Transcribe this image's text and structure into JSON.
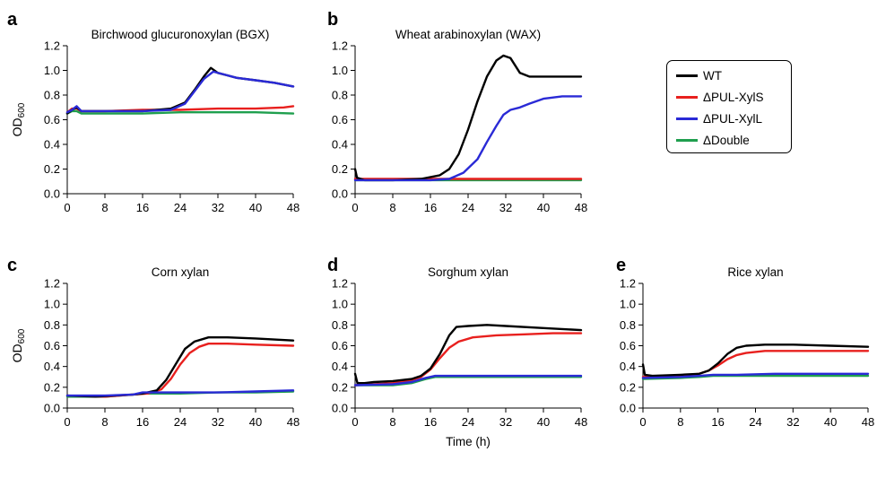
{
  "colors": {
    "WT": "#000000",
    "ΔPUL-XylS": "#e8201e",
    "ΔPUL-XylL": "#2a2ad6",
    "ΔDouble": "#1f9f4e"
  },
  "legend": [
    "WT",
    "ΔPUL-XylS",
    "ΔPUL-XylL",
    "ΔDouble"
  ],
  "chart_data": [
    {
      "type": "line",
      "panel": "a",
      "title": "Birchwood glucuronoxylan (BGX)",
      "ylabel": "OD600",
      "xlabel": "",
      "xlim": [
        0,
        48
      ],
      "ylim": [
        0,
        1.2
      ],
      "xticks": [
        "0",
        "8",
        "16",
        "24",
        "32",
        "40",
        "48"
      ],
      "yticks": [
        "0.0",
        "0.2",
        "0.4",
        "0.6",
        "0.8",
        "1.0",
        "1.2"
      ],
      "series": [
        {
          "name": "WT",
          "points": [
            [
              0,
              0.65
            ],
            [
              1,
              0.68
            ],
            [
              2,
              0.7
            ],
            [
              3,
              0.67
            ],
            [
              8,
              0.67
            ],
            [
              16,
              0.67
            ],
            [
              22,
              0.69
            ],
            [
              25,
              0.74
            ],
            [
              27,
              0.84
            ],
            [
              29,
              0.95
            ],
            [
              30.5,
              1.02
            ],
            [
              32,
              0.98
            ],
            [
              36,
              0.94
            ],
            [
              40,
              0.92
            ],
            [
              44,
              0.9
            ],
            [
              48,
              0.87
            ]
          ]
        },
        {
          "name": "ΔPUL-XylS",
          "points": [
            [
              0,
              0.66
            ],
            [
              1,
              0.69
            ],
            [
              2,
              0.69
            ],
            [
              3,
              0.67
            ],
            [
              8,
              0.67
            ],
            [
              16,
              0.68
            ],
            [
              24,
              0.68
            ],
            [
              32,
              0.69
            ],
            [
              40,
              0.69
            ],
            [
              46,
              0.7
            ],
            [
              48,
              0.71
            ]
          ]
        },
        {
          "name": "ΔPUL-XylL",
          "points": [
            [
              0,
              0.66
            ],
            [
              1,
              0.68
            ],
            [
              2,
              0.71
            ],
            [
              3,
              0.67
            ],
            [
              8,
              0.67
            ],
            [
              16,
              0.67
            ],
            [
              22,
              0.68
            ],
            [
              25,
              0.73
            ],
            [
              27,
              0.83
            ],
            [
              29,
              0.93
            ],
            [
              31,
              0.99
            ],
            [
              33,
              0.97
            ],
            [
              36,
              0.94
            ],
            [
              40,
              0.92
            ],
            [
              44,
              0.9
            ],
            [
              48,
              0.87
            ]
          ]
        },
        {
          "name": "ΔDouble",
          "points": [
            [
              0,
              0.65
            ],
            [
              1,
              0.67
            ],
            [
              2,
              0.67
            ],
            [
              3,
              0.65
            ],
            [
              8,
              0.65
            ],
            [
              16,
              0.65
            ],
            [
              24,
              0.66
            ],
            [
              32,
              0.66
            ],
            [
              40,
              0.66
            ],
            [
              48,
              0.65
            ]
          ]
        }
      ]
    },
    {
      "type": "line",
      "panel": "b",
      "title": "Wheat arabinoxylan (WAX)",
      "ylabel": "",
      "xlabel": "",
      "xlim": [
        0,
        48
      ],
      "ylim": [
        0,
        1.2
      ],
      "xticks": [
        "0",
        "8",
        "16",
        "24",
        "32",
        "40",
        "48"
      ],
      "yticks": [
        "0.0",
        "0.2",
        "0.4",
        "0.6",
        "0.8",
        "1.0",
        "1.2"
      ],
      "series": [
        {
          "name": "WT",
          "points": [
            [
              0,
              0.2
            ],
            [
              0.4,
              0.13
            ],
            [
              2,
              0.11
            ],
            [
              8,
              0.11
            ],
            [
              14,
              0.12
            ],
            [
              18,
              0.15
            ],
            [
              20,
              0.2
            ],
            [
              22,
              0.32
            ],
            [
              24,
              0.52
            ],
            [
              26,
              0.75
            ],
            [
              28,
              0.95
            ],
            [
              30,
              1.08
            ],
            [
              31.5,
              1.12
            ],
            [
              33,
              1.1
            ],
            [
              35,
              0.98
            ],
            [
              37,
              0.95
            ],
            [
              40,
              0.95
            ],
            [
              44,
              0.95
            ],
            [
              48,
              0.95
            ]
          ]
        },
        {
          "name": "ΔPUL-XylS",
          "points": [
            [
              0,
              0.12
            ],
            [
              8,
              0.12
            ],
            [
              16,
              0.12
            ],
            [
              24,
              0.12
            ],
            [
              32,
              0.12
            ],
            [
              40,
              0.12
            ],
            [
              48,
              0.12
            ]
          ]
        },
        {
          "name": "ΔPUL-XylL",
          "points": [
            [
              0,
              0.11
            ],
            [
              8,
              0.11
            ],
            [
              16,
              0.11
            ],
            [
              20,
              0.12
            ],
            [
              23,
              0.17
            ],
            [
              26,
              0.28
            ],
            [
              28,
              0.42
            ],
            [
              30,
              0.55
            ],
            [
              31.5,
              0.64
            ],
            [
              33,
              0.68
            ],
            [
              35,
              0.7
            ],
            [
              37,
              0.73
            ],
            [
              40,
              0.77
            ],
            [
              44,
              0.79
            ],
            [
              48,
              0.79
            ]
          ]
        },
        {
          "name": "ΔDouble",
          "points": [
            [
              0,
              0.11
            ],
            [
              8,
              0.11
            ],
            [
              16,
              0.11
            ],
            [
              24,
              0.11
            ],
            [
              32,
              0.11
            ],
            [
              40,
              0.11
            ],
            [
              48,
              0.11
            ]
          ]
        }
      ]
    },
    {
      "type": "line",
      "panel": "c",
      "title": "Corn xylan",
      "ylabel": "OD600",
      "xlabel": "",
      "xlim": [
        0,
        48
      ],
      "ylim": [
        0,
        1.2
      ],
      "xticks": [
        "0",
        "8",
        "16",
        "24",
        "32",
        "40",
        "48"
      ],
      "yticks": [
        "0.0",
        "0.2",
        "0.4",
        "0.6",
        "0.8",
        "1.0",
        "1.2"
      ],
      "series": [
        {
          "name": "WT",
          "points": [
            [
              0,
              0.12
            ],
            [
              6,
              0.11
            ],
            [
              10,
              0.12
            ],
            [
              14,
              0.13
            ],
            [
              16,
              0.14
            ],
            [
              19,
              0.17
            ],
            [
              21,
              0.27
            ],
            [
              23,
              0.42
            ],
            [
              25,
              0.57
            ],
            [
              27,
              0.64
            ],
            [
              30,
              0.68
            ],
            [
              34,
              0.68
            ],
            [
              40,
              0.67
            ],
            [
              48,
              0.65
            ]
          ]
        },
        {
          "name": "ΔPUL-XylS",
          "points": [
            [
              0,
              0.12
            ],
            [
              8,
              0.11
            ],
            [
              14,
              0.13
            ],
            [
              17,
              0.14
            ],
            [
              20,
              0.18
            ],
            [
              22,
              0.28
            ],
            [
              24,
              0.42
            ],
            [
              26,
              0.53
            ],
            [
              28,
              0.59
            ],
            [
              30,
              0.62
            ],
            [
              34,
              0.62
            ],
            [
              40,
              0.61
            ],
            [
              48,
              0.6
            ]
          ]
        },
        {
          "name": "ΔPUL-XylL",
          "points": [
            [
              0,
              0.12
            ],
            [
              8,
              0.12
            ],
            [
              14,
              0.13
            ],
            [
              16,
              0.15
            ],
            [
              24,
              0.15
            ],
            [
              32,
              0.15
            ],
            [
              40,
              0.16
            ],
            [
              48,
              0.17
            ]
          ]
        },
        {
          "name": "ΔDouble",
          "points": [
            [
              0,
              0.11
            ],
            [
              8,
              0.11
            ],
            [
              14,
              0.13
            ],
            [
              16,
              0.14
            ],
            [
              24,
              0.14
            ],
            [
              32,
              0.15
            ],
            [
              40,
              0.15
            ],
            [
              48,
              0.16
            ]
          ]
        }
      ]
    },
    {
      "type": "line",
      "panel": "d",
      "title": "Sorghum xylan",
      "ylabel": "",
      "xlabel": "Time (h)",
      "xlim": [
        0,
        48
      ],
      "ylim": [
        0,
        1.2
      ],
      "xticks": [
        "0",
        "8",
        "16",
        "24",
        "32",
        "40",
        "48"
      ],
      "yticks": [
        "0.0",
        "0.2",
        "0.4",
        "0.6",
        "0.8",
        "1.0",
        "1.2"
      ],
      "series": [
        {
          "name": "WT",
          "points": [
            [
              0,
              0.33
            ],
            [
              0.5,
              0.24
            ],
            [
              2,
              0.24
            ],
            [
              4,
              0.25
            ],
            [
              8,
              0.26
            ],
            [
              12,
              0.28
            ],
            [
              14,
              0.31
            ],
            [
              16,
              0.38
            ],
            [
              18,
              0.52
            ],
            [
              20,
              0.7
            ],
            [
              21.5,
              0.78
            ],
            [
              24,
              0.79
            ],
            [
              28,
              0.8
            ],
            [
              32,
              0.79
            ],
            [
              40,
              0.77
            ],
            [
              48,
              0.75
            ]
          ]
        },
        {
          "name": "ΔPUL-XylS",
          "points": [
            [
              0,
              0.22
            ],
            [
              4,
              0.23
            ],
            [
              8,
              0.24
            ],
            [
              12,
              0.27
            ],
            [
              14,
              0.3
            ],
            [
              16,
              0.37
            ],
            [
              18,
              0.48
            ],
            [
              20,
              0.58
            ],
            [
              22,
              0.64
            ],
            [
              25,
              0.68
            ],
            [
              30,
              0.7
            ],
            [
              36,
              0.71
            ],
            [
              42,
              0.72
            ],
            [
              48,
              0.72
            ]
          ]
        },
        {
          "name": "ΔPUL-XylL",
          "points": [
            [
              0,
              0.22
            ],
            [
              8,
              0.23
            ],
            [
              12,
              0.25
            ],
            [
              15,
              0.29
            ],
            [
              17,
              0.31
            ],
            [
              24,
              0.31
            ],
            [
              32,
              0.31
            ],
            [
              40,
              0.31
            ],
            [
              48,
              0.31
            ]
          ]
        },
        {
          "name": "ΔDouble",
          "points": [
            [
              0,
              0.22
            ],
            [
              8,
              0.22
            ],
            [
              12,
              0.24
            ],
            [
              15,
              0.28
            ],
            [
              17,
              0.3
            ],
            [
              24,
              0.3
            ],
            [
              32,
              0.3
            ],
            [
              40,
              0.3
            ],
            [
              48,
              0.3
            ]
          ]
        }
      ]
    },
    {
      "type": "line",
      "panel": "e",
      "title": "Rice xylan",
      "ylabel": "",
      "xlabel": "",
      "xlim": [
        0,
        48
      ],
      "ylim": [
        0,
        1.2
      ],
      "xticks": [
        "0",
        "8",
        "16",
        "24",
        "32",
        "40",
        "48"
      ],
      "yticks": [
        "0.0",
        "0.2",
        "0.4",
        "0.6",
        "0.8",
        "1.0",
        "1.2"
      ],
      "series": [
        {
          "name": "WT",
          "points": [
            [
              0,
              0.42
            ],
            [
              0.4,
              0.32
            ],
            [
              2,
              0.31
            ],
            [
              8,
              0.32
            ],
            [
              12,
              0.33
            ],
            [
              14,
              0.36
            ],
            [
              16,
              0.43
            ],
            [
              18,
              0.52
            ],
            [
              20,
              0.58
            ],
            [
              22,
              0.6
            ],
            [
              26,
              0.61
            ],
            [
              32,
              0.61
            ],
            [
              40,
              0.6
            ],
            [
              48,
              0.59
            ]
          ]
        },
        {
          "name": "ΔPUL-XylS",
          "points": [
            [
              0,
              0.3
            ],
            [
              8,
              0.31
            ],
            [
              12,
              0.33
            ],
            [
              14,
              0.36
            ],
            [
              16,
              0.41
            ],
            [
              18,
              0.47
            ],
            [
              20,
              0.51
            ],
            [
              22,
              0.53
            ],
            [
              26,
              0.55
            ],
            [
              32,
              0.55
            ],
            [
              40,
              0.55
            ],
            [
              48,
              0.55
            ]
          ]
        },
        {
          "name": "ΔPUL-XylL",
          "points": [
            [
              0,
              0.29
            ],
            [
              8,
              0.3
            ],
            [
              12,
              0.31
            ],
            [
              15,
              0.32
            ],
            [
              20,
              0.32
            ],
            [
              28,
              0.33
            ],
            [
              36,
              0.33
            ],
            [
              48,
              0.33
            ]
          ]
        },
        {
          "name": "ΔDouble",
          "points": [
            [
              0,
              0.28
            ],
            [
              8,
              0.29
            ],
            [
              12,
              0.3
            ],
            [
              15,
              0.31
            ],
            [
              20,
              0.31
            ],
            [
              28,
              0.31
            ],
            [
              36,
              0.31
            ],
            [
              48,
              0.31
            ]
          ]
        }
      ]
    }
  ]
}
